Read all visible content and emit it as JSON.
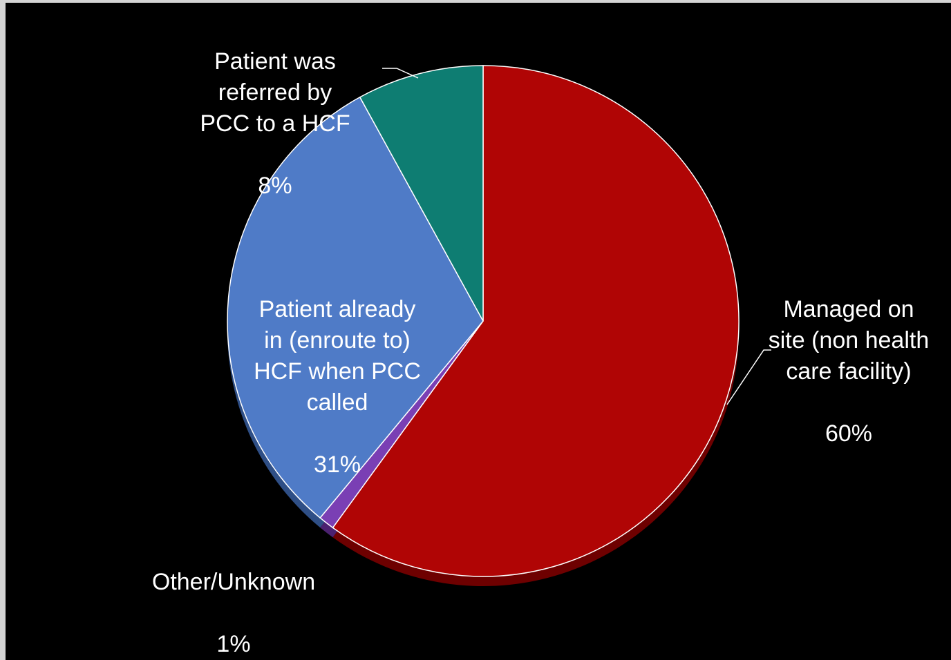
{
  "chart_data": {
    "type": "pie",
    "title": "",
    "slices": [
      {
        "label": "Managed on\nsite (non health\ncare facility)",
        "value": 60,
        "value_label": "60%",
        "color": "#b00505",
        "side_color": "#6e0000"
      },
      {
        "label": "Other/Unknown",
        "value": 1,
        "value_label": "1%",
        "color": "#7a3fb4",
        "side_color": "#4b2170"
      },
      {
        "label": "Patient already\nin (enroute to)\nHCF when PCC\ncalled",
        "value": 31,
        "value_label": "31%",
        "color": "#4f7bc7",
        "side_color": "#2f4f86"
      },
      {
        "label": "Patient was\nreferred by\nPCC to a HCF",
        "value": 8,
        "value_label": "8%",
        "color": "#0e7d72",
        "side_color": "#07463f"
      }
    ],
    "start_angle_deg": 0,
    "direction": "clockwise",
    "background": "#000000",
    "border_color": "#ffffff"
  }
}
